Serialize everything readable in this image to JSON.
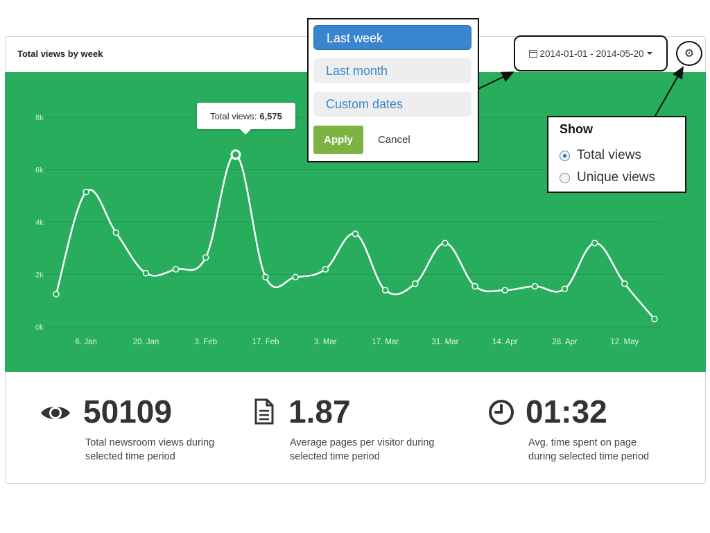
{
  "panel": {
    "title": "Total views by week"
  },
  "date_range": {
    "label": "2014-01-01 - 2014-05-20"
  },
  "dropdown": {
    "options": [
      "Last week",
      "Last month",
      "Custom dates"
    ],
    "selected": "Last week",
    "apply_label": "Apply",
    "cancel_label": "Cancel"
  },
  "show_menu": {
    "title": "Show",
    "options": [
      {
        "label": "Total views",
        "checked": true
      },
      {
        "label": "Unique views",
        "checked": false
      }
    ]
  },
  "tooltip": {
    "label": "Total views:",
    "value": "6,575"
  },
  "stats": [
    {
      "icon": "eye-icon",
      "value": "50109",
      "desc1": "Total newsroom views during",
      "desc2": "selected time period"
    },
    {
      "icon": "document-icon",
      "value": "1.87",
      "desc1": "Average pages per visitor during",
      "desc2": "selected time period"
    },
    {
      "icon": "clock-icon",
      "value": "01:32",
      "desc1": "Avg. time spent on page",
      "desc2": "during selected time period"
    }
  ],
  "colors": {
    "chart_bg": "#28ad5c",
    "accent_blue": "#3a85d0",
    "apply_green": "#7cb342"
  },
  "chart_data": {
    "type": "line",
    "x_ticks": [
      "6. Jan",
      "20. Jan",
      "3. Feb",
      "17. Feb",
      "3. Mar",
      "17. Mar",
      "31. Mar",
      "14. Apr",
      "28. Apr",
      "12. May"
    ],
    "y_ticks": [
      "0k",
      "2k",
      "4k",
      "6k",
      "8k"
    ],
    "ylim": [
      0,
      8000
    ],
    "series": [
      {
        "values": [
          1250,
          5150,
          3600,
          2050,
          2200,
          2650,
          6575,
          1900,
          1900,
          2200,
          3550,
          1400,
          1650,
          3200,
          1550,
          1400,
          1550,
          1450,
          3200,
          1650,
          300
        ]
      }
    ],
    "grid": true
  }
}
